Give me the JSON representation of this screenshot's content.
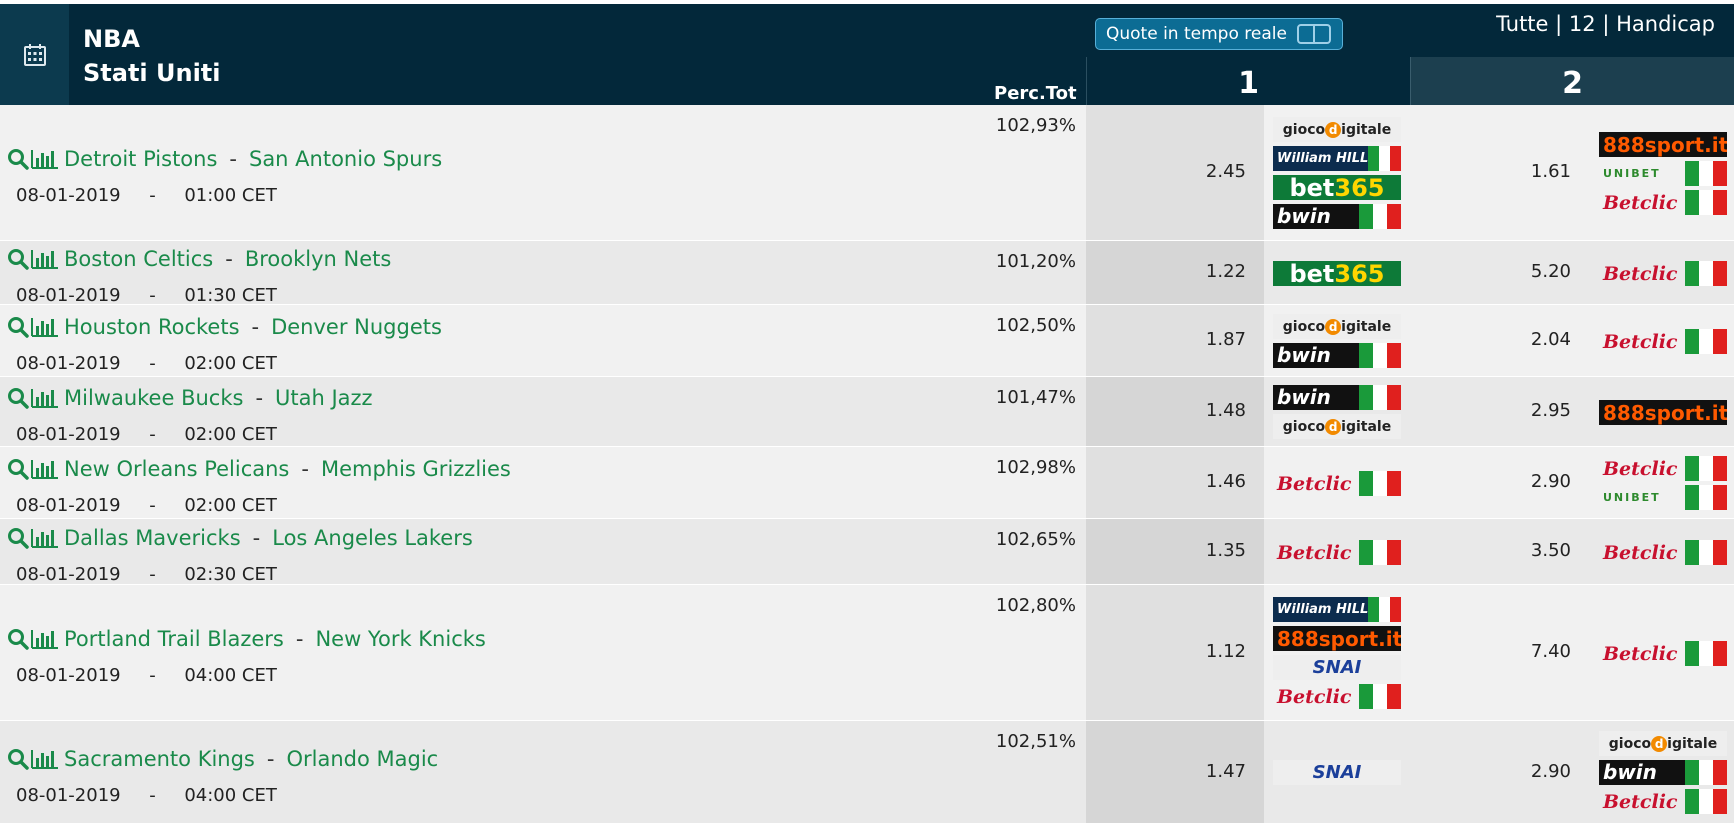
{
  "header": {
    "league": "NBA",
    "country": "Stati Uniti",
    "perc_label": "Perc.Tot",
    "live_label": "Quote in tempo reale",
    "filter_all": "Tutte",
    "filter_12": "12",
    "filter_handicap": "Handicap",
    "filter_sep": "|",
    "col1": "1",
    "col2": "2"
  },
  "matches": [
    {
      "home": "Detroit Pistons",
      "away": "San Antonio Spurs",
      "date": "08-01-2019",
      "time": "01:00 CET",
      "pct": "102,93%",
      "odd1": "2.45",
      "odd2": "1.61",
      "bk1": [
        "gioco",
        "williamhill",
        "bet365",
        "bwin"
      ],
      "bk2": [
        "888",
        "unibet",
        "betclic"
      ]
    },
    {
      "home": "Boston Celtics",
      "away": "Brooklyn Nets",
      "date": "08-01-2019",
      "time": "01:30 CET",
      "pct": "101,20%",
      "odd1": "1.22",
      "odd2": "5.20",
      "bk1": [
        "bet365"
      ],
      "bk2": [
        "betclic"
      ]
    },
    {
      "home": "Houston Rockets",
      "away": "Denver Nuggets",
      "date": "08-01-2019",
      "time": "02:00 CET",
      "pct": "102,50%",
      "odd1": "1.87",
      "odd2": "2.04",
      "bk1": [
        "gioco",
        "bwin"
      ],
      "bk2": [
        "betclic"
      ]
    },
    {
      "home": "Milwaukee Bucks",
      "away": "Utah Jazz",
      "date": "08-01-2019",
      "time": "02:00 CET",
      "pct": "101,47%",
      "odd1": "1.48",
      "odd2": "2.95",
      "bk1": [
        "bwin",
        "gioco"
      ],
      "bk2": [
        "888"
      ]
    },
    {
      "home": "New Orleans Pelicans",
      "away": "Memphis Grizzlies",
      "date": "08-01-2019",
      "time": "02:00 CET",
      "pct": "102,98%",
      "odd1": "1.46",
      "odd2": "2.90",
      "bk1": [
        "betclic"
      ],
      "bk2": [
        "betclic",
        "unibet"
      ]
    },
    {
      "home": "Dallas Mavericks",
      "away": "Los Angeles Lakers",
      "date": "08-01-2019",
      "time": "02:30 CET",
      "pct": "102,65%",
      "odd1": "1.35",
      "odd2": "3.50",
      "bk1": [
        "betclic"
      ],
      "bk2": [
        "betclic"
      ]
    },
    {
      "home": "Portland Trail Blazers",
      "away": "New York Knicks",
      "date": "08-01-2019",
      "time": "04:00 CET",
      "pct": "102,80%",
      "odd1": "1.12",
      "odd2": "7.40",
      "bk1": [
        "williamhill",
        "888",
        "snai",
        "betclic"
      ],
      "bk2": [
        "betclic"
      ]
    },
    {
      "home": "Sacramento Kings",
      "away": "Orlando Magic",
      "date": "08-01-2019",
      "time": "04:00 CET",
      "pct": "102,51%",
      "odd1": "1.47",
      "odd2": "2.90",
      "bk1": [
        "snai"
      ],
      "bk2": [
        "gioco",
        "bwin",
        "betclic"
      ]
    }
  ],
  "bookmakers": {
    "gioco": {
      "text": "gioco",
      "badge": "d",
      "tail": "igitale"
    },
    "williamhill": {
      "text": "William HILL"
    },
    "bet365": {
      "text": "bet",
      "accent": "365"
    },
    "bwin": {
      "text": "bwin"
    },
    "betclic": {
      "text": "Betclic"
    },
    "888": {
      "text": "888sport.it"
    },
    "unibet": {
      "text": "UNIBET"
    },
    "snai": {
      "text": "SNAI"
    }
  },
  "colors": {
    "header_bg": "#03283a",
    "team_link": "#1a8a4a",
    "live_btn": "#0c6c94"
  },
  "icons": {
    "calendar": "calendar-icon",
    "search": "search-icon",
    "stats": "bar-chart-icon"
  }
}
